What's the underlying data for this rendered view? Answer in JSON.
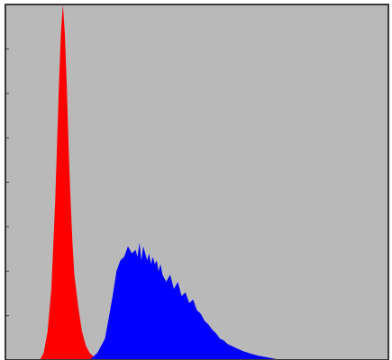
{
  "chart_data": {
    "type": "area",
    "title": "",
    "xlabel": "",
    "ylabel": "",
    "xlim": [
      0,
      100
    ],
    "ylim": [
      0,
      100
    ],
    "grid": false,
    "legend": "none",
    "colors": {
      "plot_background": "#b9b9b9",
      "frame": "#3a3a3a",
      "tick": "#444444"
    },
    "y_ticks": [
      0,
      12.5,
      25,
      37.5,
      50,
      62.5,
      75,
      87.5,
      100
    ],
    "series": [
      {
        "color": "#ff0000",
        "x": [
          9,
          10,
          11,
          12,
          13,
          14,
          14.5,
          15,
          15.5,
          16,
          16.5,
          17,
          17.5,
          18,
          19,
          20,
          21,
          22,
          23,
          24,
          25
        ],
        "y": [
          0,
          2,
          8,
          20,
          45,
          78,
          92,
          100,
          92,
          78,
          60,
          45,
          33,
          24,
          15,
          8,
          4,
          2,
          1,
          0.5,
          0
        ]
      },
      {
        "color": "#0000ff",
        "x": [
          22,
          24,
          26,
          27,
          28,
          29,
          30,
          31,
          32,
          33,
          34,
          34.5,
          35,
          35.5,
          36,
          36.5,
          37,
          37.5,
          38,
          38.5,
          39,
          39.5,
          40,
          40.5,
          41,
          42,
          43,
          44,
          45,
          46,
          47,
          48,
          49,
          50,
          51,
          52,
          53,
          54,
          55,
          56,
          57,
          58,
          60,
          62,
          64,
          66,
          68,
          70,
          72
        ],
        "y": [
          0,
          2,
          6,
          12,
          18,
          25,
          28,
          29,
          32,
          30,
          31,
          29,
          33,
          28,
          32,
          30,
          28,
          30,
          27,
          29,
          27,
          28,
          25,
          27,
          24,
          22,
          24,
          20,
          22,
          18,
          19,
          16,
          17,
          14,
          13,
          11,
          10,
          8.5,
          7.5,
          6,
          5.5,
          4.5,
          3.5,
          2.5,
          1.8,
          1.2,
          0.8,
          0.4,
          0
        ]
      }
    ]
  }
}
